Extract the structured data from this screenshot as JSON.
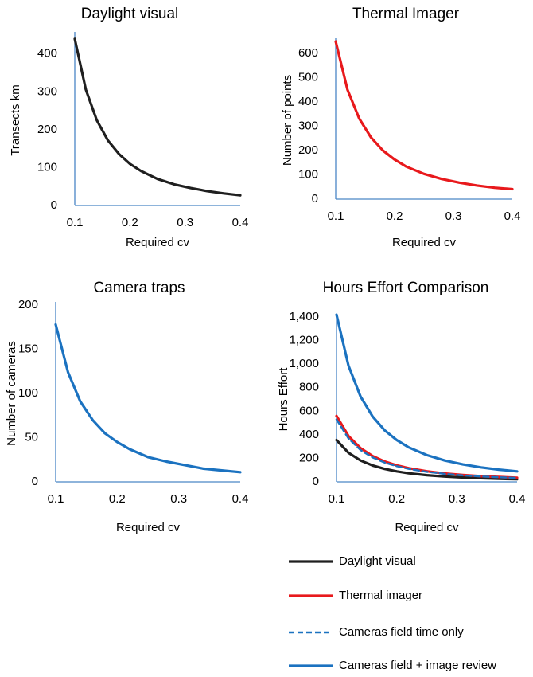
{
  "chart_data": [
    {
      "type": "line",
      "title": "Daylight visual",
      "xlabel": "Required  cv",
      "ylabel": "Transects km",
      "xlim": [
        0.1,
        0.4
      ],
      "ylim": [
        0,
        450
      ],
      "x_ticks": [
        "0.1",
        "0.2",
        "0.3",
        "0.4"
      ],
      "y_ticks": [
        "0",
        "100",
        "200",
        "300",
        "400"
      ],
      "grid": false,
      "series": [
        {
          "color": "#1f1f1f",
          "dashed": false,
          "x": [
            0.1,
            0.12,
            0.14,
            0.16,
            0.18,
            0.2,
            0.22,
            0.25,
            0.28,
            0.31,
            0.34,
            0.37,
            0.4
          ],
          "values": [
            440,
            306,
            225,
            172,
            136,
            110,
            91,
            70,
            56,
            46,
            38,
            32,
            27
          ]
        }
      ]
    },
    {
      "type": "line",
      "title": "Thermal Imager",
      "xlabel": "Required  cv",
      "ylabel": "Number of points",
      "xlim": [
        0.1,
        0.4
      ],
      "ylim": [
        0,
        650
      ],
      "x_ticks": [
        "0.1",
        "0.2",
        "0.3",
        "0.4"
      ],
      "y_ticks": [
        "0",
        "100",
        "200",
        "300",
        "400",
        "500",
        "600"
      ],
      "grid": false,
      "series": [
        {
          "color": "#e8191c",
          "dashed": false,
          "x": [
            0.1,
            0.12,
            0.14,
            0.16,
            0.18,
            0.2,
            0.22,
            0.25,
            0.28,
            0.31,
            0.34,
            0.37,
            0.4
          ],
          "values": [
            650,
            451,
            332,
            254,
            201,
            163,
            134,
            104,
            83,
            68,
            56,
            47,
            41
          ]
        }
      ]
    },
    {
      "type": "line",
      "title": "Camera traps",
      "xlabel": "Required  cv",
      "ylabel": "Number of  cameras",
      "xlim": [
        0.1,
        0.4
      ],
      "ylim": [
        0,
        200
      ],
      "x_ticks": [
        "0.1",
        "0.2",
        "0.3",
        "0.4"
      ],
      "y_ticks": [
        "0",
        "50",
        "100",
        "150",
        "200"
      ],
      "grid": false,
      "series": [
        {
          "color": "#1b72c0",
          "dashed": false,
          "x": [
            0.1,
            0.12,
            0.14,
            0.16,
            0.18,
            0.2,
            0.22,
            0.25,
            0.28,
            0.31,
            0.34,
            0.37,
            0.4
          ],
          "values": [
            178,
            124,
            91,
            70,
            55,
            45,
            37,
            28,
            23,
            19,
            15,
            13,
            11
          ]
        }
      ]
    },
    {
      "type": "line",
      "title": "Hours Effort Comparison",
      "xlabel": "Required  cv",
      "ylabel": "Hours Effort",
      "xlim": [
        0.1,
        0.4
      ],
      "ylim": [
        0,
        1400
      ],
      "x_ticks": [
        "0.1",
        "0.2",
        "0.3",
        "0.4"
      ],
      "y_ticks": [
        "0",
        "200",
        "400",
        "600",
        "800",
        "1,000",
        "1,200",
        "1,400"
      ],
      "grid": false,
      "legend": "bottom",
      "series": [
        {
          "name": "Daylight visual",
          "color": "#1f1f1f",
          "dashed": false,
          "x": [
            0.1,
            0.12,
            0.14,
            0.16,
            0.18,
            0.2,
            0.22,
            0.25,
            0.28,
            0.31,
            0.34,
            0.37,
            0.4
          ],
          "values": [
            355,
            247,
            181,
            139,
            110,
            89,
            73,
            57,
            45,
            37,
            31,
            26,
            22
          ]
        },
        {
          "name": "Thermal imager",
          "color": "#e8191c",
          "dashed": false,
          "x": [
            0.1,
            0.12,
            0.14,
            0.16,
            0.18,
            0.2,
            0.22,
            0.25,
            0.28,
            0.31,
            0.34,
            0.37,
            0.4
          ],
          "values": [
            560,
            389,
            286,
            219,
            173,
            140,
            116,
            90,
            71,
            58,
            48,
            41,
            35
          ]
        },
        {
          "name": "Cameras field time only",
          "color": "#1b72c0",
          "dashed": true,
          "x": [
            0.1,
            0.12,
            0.14,
            0.16,
            0.18,
            0.2,
            0.22,
            0.25,
            0.28,
            0.31,
            0.34,
            0.37,
            0.4
          ],
          "values": [
            530,
            368,
            270,
            207,
            164,
            133,
            110,
            85,
            68,
            55,
            46,
            39,
            33
          ]
        },
        {
          "name": "Cameras field + image review",
          "color": "#1b72c0",
          "dashed": false,
          "x": [
            0.1,
            0.12,
            0.14,
            0.16,
            0.18,
            0.2,
            0.22,
            0.25,
            0.28,
            0.31,
            0.34,
            0.37,
            0.4
          ],
          "values": [
            1420,
            986,
            724,
            555,
            438,
            355,
            293,
            227,
            181,
            148,
            123,
            104,
            89
          ]
        }
      ]
    }
  ]
}
